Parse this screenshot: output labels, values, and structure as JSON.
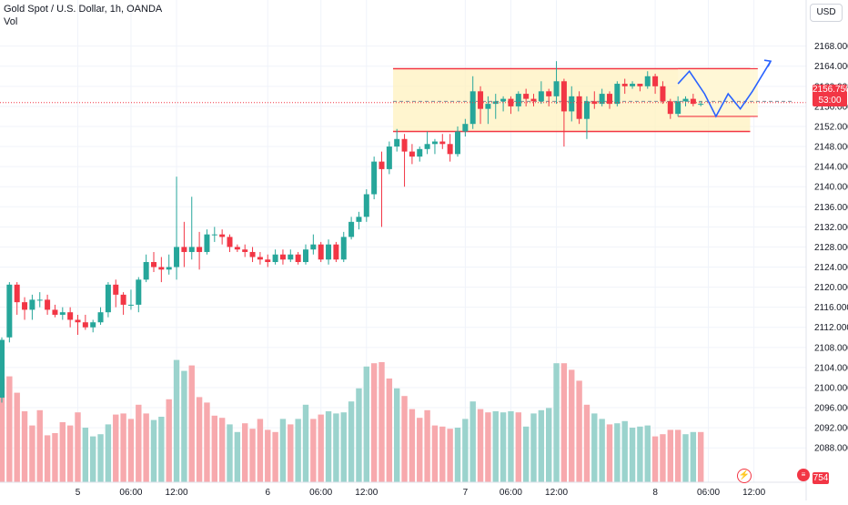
{
  "header": {
    "title": "Gold Spot / U.S. Dollar, 1h, OANDA",
    "volume_label": "Vol"
  },
  "currency_button": "USD",
  "last_price": {
    "value": "2156.750",
    "countdown": "53:00"
  },
  "volume_last": "754",
  "icons": {
    "flash": "lightning-icon",
    "flag": "us-flag-icon"
  },
  "colors": {
    "up": "#26a69a",
    "down": "#f23645",
    "vol_up": "#9bd3cd",
    "vol_down": "#f7a9ad",
    "zone_fill": "#fff2bf",
    "channel_line": "#f23645",
    "projection": "#2962ff"
  },
  "chart_data": {
    "type": "candlestick",
    "symbol": "Gold Spot / U.S. Dollar",
    "timeframe": "1h",
    "source": "OANDA",
    "y_ticks": [
      "2168.000",
      "2164.000",
      "2160.000",
      "2156.000",
      "2152.000",
      "2148.000",
      "2144.000",
      "2140.000",
      "2136.000",
      "2132.000",
      "2128.000",
      "2124.000",
      "2120.000",
      "2116.000",
      "2112.000",
      "2108.000",
      "2104.000",
      "2100.000",
      "2096.000",
      "2092.000",
      "2088.000"
    ],
    "ylim": [
      2085.5,
      2171.2
    ],
    "x_ticks": [
      {
        "label": "5",
        "index": 10
      },
      {
        "label": "06:00",
        "index": 17
      },
      {
        "label": "12:00",
        "index": 23
      },
      {
        "label": "6",
        "index": 35
      },
      {
        "label": "06:00",
        "index": 42
      },
      {
        "label": "12:00",
        "index": 48
      },
      {
        "label": "7",
        "index": 61
      },
      {
        "label": "06:00",
        "index": 67
      },
      {
        "label": "12:00",
        "index": 73
      },
      {
        "label": "8",
        "index": 86
      },
      {
        "label": "06:00",
        "index": 93
      },
      {
        "label": "12:00",
        "index": 99
      }
    ],
    "candles": [
      [
        2098.0,
        2109.5,
        2097.0,
        2110.0
      ],
      [
        2110.0,
        2120.5,
        2109.0,
        2121.0
      ],
      [
        2120.5,
        2117.0,
        2114.5,
        2121.0
      ],
      [
        2117.0,
        2115.5,
        2113.5,
        2118.0
      ],
      [
        2115.5,
        2117.5,
        2113.5,
        2118.5
      ],
      [
        2117.5,
        2117.5,
        2116.0,
        2119.0
      ],
      [
        2117.5,
        2115.5,
        2114.5,
        2118.5
      ],
      [
        2115.5,
        2114.5,
        2114.0,
        2116.5
      ],
      [
        2114.5,
        2115.0,
        2113.5,
        2116.0
      ],
      [
        2115.0,
        2113.5,
        2112.0,
        2116.0
      ],
      [
        2113.5,
        2113.0,
        2110.5,
        2114.5
      ],
      [
        2113.0,
        2112.0,
        2111.5,
        2114.5
      ],
      [
        2112.0,
        2113.0,
        2111.0,
        2113.5
      ],
      [
        2113.0,
        2115.0,
        2112.5,
        2116.0
      ],
      [
        2115.0,
        2120.5,
        2114.0,
        2121.0
      ],
      [
        2120.5,
        2118.5,
        2116.0,
        2121.5
      ],
      [
        2118.5,
        2116.5,
        2114.5,
        2119.0
      ],
      [
        2116.5,
        2116.5,
        2115.5,
        2119.5
      ],
      [
        2116.5,
        2121.5,
        2115.0,
        2122.0
      ],
      [
        2121.5,
        2125.0,
        2121.0,
        2126.5
      ],
      [
        2125.0,
        2124.0,
        2123.0,
        2127.0
      ],
      [
        2124.0,
        2123.5,
        2121.0,
        2126.0
      ],
      [
        2123.5,
        2124.0,
        2122.5,
        2126.5
      ],
      [
        2124.0,
        2128.0,
        2121.5,
        2142.0
      ],
      [
        2128.0,
        2127.0,
        2124.0,
        2133.0
      ],
      [
        2127.0,
        2128.0,
        2125.5,
        2138.0
      ],
      [
        2128.0,
        2127.0,
        2123.5,
        2131.0
      ],
      [
        2127.0,
        2130.5,
        2126.5,
        2131.5
      ],
      [
        2130.5,
        2130.5,
        2129.0,
        2132.0
      ],
      [
        2130.5,
        2130.0,
        2128.5,
        2131.5
      ],
      [
        2130.0,
        2128.0,
        2127.0,
        2130.5
      ],
      [
        2128.0,
        2127.5,
        2127.0,
        2128.5
      ],
      [
        2127.5,
        2127.0,
        2126.0,
        2128.5
      ],
      [
        2127.0,
        2126.0,
        2125.0,
        2128.0
      ],
      [
        2126.0,
        2125.5,
        2124.5,
        2127.0
      ],
      [
        2125.5,
        2125.0,
        2124.0,
        2126.5
      ],
      [
        2125.0,
        2126.5,
        2124.5,
        2127.5
      ],
      [
        2126.5,
        2125.5,
        2124.5,
        2127.5
      ],
      [
        2125.5,
        2126.5,
        2125.0,
        2127.5
      ],
      [
        2126.5,
        2125.0,
        2124.5,
        2127.0
      ],
      [
        2125.0,
        2127.5,
        2124.5,
        2128.5
      ],
      [
        2127.5,
        2128.5,
        2126.5,
        2130.5
      ],
      [
        2128.5,
        2125.5,
        2125.0,
        2129.0
      ],
      [
        2125.5,
        2128.5,
        2124.5,
        2129.5
      ],
      [
        2128.5,
        2125.5,
        2125.0,
        2129.0
      ],
      [
        2125.5,
        2130.0,
        2125.0,
        2131.0
      ],
      [
        2130.0,
        2133.0,
        2129.5,
        2134.0
      ],
      [
        2133.0,
        2134.0,
        2131.5,
        2135.0
      ],
      [
        2134.0,
        2138.5,
        2133.0,
        2139.5
      ],
      [
        2138.5,
        2145.0,
        2137.5,
        2146.0
      ],
      [
        2145.0,
        2143.5,
        2132.0,
        2147.0
      ],
      [
        2143.5,
        2148.0,
        2142.5,
        2149.0
      ],
      [
        2148.0,
        2149.5,
        2147.0,
        2151.5
      ],
      [
        2149.5,
        2147.0,
        2140.0,
        2150.5
      ],
      [
        2147.0,
        2146.0,
        2144.5,
        2148.5
      ],
      [
        2146.0,
        2147.5,
        2145.0,
        2148.0
      ],
      [
        2147.5,
        2148.5,
        2146.5,
        2151.0
      ],
      [
        2148.5,
        2149.0,
        2146.5,
        2149.5
      ],
      [
        2149.0,
        2148.5,
        2147.5,
        2150.5
      ],
      [
        2148.5,
        2146.5,
        2145.0,
        2150.5
      ],
      [
        2146.5,
        2151.0,
        2146.0,
        2152.0
      ],
      [
        2151.0,
        2152.5,
        2150.0,
        2153.5
      ],
      [
        2152.5,
        2159.0,
        2151.5,
        2162.0
      ],
      [
        2159.0,
        2155.5,
        2152.5,
        2160.0
      ],
      [
        2155.5,
        2156.5,
        2152.5,
        2158.0
      ],
      [
        2156.5,
        2157.0,
        2153.5,
        2158.5
      ],
      [
        2157.0,
        2157.5,
        2155.0,
        2158.0
      ],
      [
        2157.5,
        2156.0,
        2154.5,
        2158.0
      ],
      [
        2156.0,
        2158.5,
        2155.0,
        2159.0
      ],
      [
        2158.5,
        2157.5,
        2156.0,
        2159.5
      ],
      [
        2157.5,
        2157.0,
        2156.0,
        2158.5
      ],
      [
        2157.0,
        2159.0,
        2156.5,
        2161.0
      ],
      [
        2159.0,
        2158.0,
        2156.0,
        2159.5
      ],
      [
        2158.0,
        2161.0,
        2156.5,
        2165.0
      ],
      [
        2161.0,
        2155.0,
        2148.0,
        2161.5
      ],
      [
        2155.0,
        2158.0,
        2153.0,
        2160.0
      ],
      [
        2158.0,
        2153.5,
        2152.5,
        2159.0
      ],
      [
        2153.5,
        2157.0,
        2149.5,
        2158.0
      ],
      [
        2157.0,
        2156.5,
        2155.5,
        2159.0
      ],
      [
        2156.5,
        2158.5,
        2156.0,
        2159.5
      ],
      [
        2158.5,
        2156.5,
        2155.5,
        2159.0
      ],
      [
        2156.5,
        2160.5,
        2156.0,
        2161.0
      ],
      [
        2160.5,
        2160.0,
        2158.5,
        2161.5
      ],
      [
        2160.0,
        2160.5,
        2159.5,
        2161.0
      ],
      [
        2160.5,
        2160.0,
        2159.0,
        2160.5
      ],
      [
        2160.0,
        2162.0,
        2159.5,
        2163.0
      ],
      [
        2162.0,
        2160.0,
        2158.5,
        2162.5
      ],
      [
        2160.0,
        2157.0,
        2156.5,
        2161.0
      ],
      [
        2157.0,
        2154.5,
        2153.5,
        2157.5
      ],
      [
        2154.5,
        2157.0,
        2154.0,
        2158.0
      ],
      [
        2157.0,
        2157.5,
        2156.0,
        2158.0
      ],
      [
        2157.5,
        2156.5,
        2156.0,
        2158.5
      ],
      [
        2156.5,
        2156.5,
        2156.0,
        2157.0
      ]
    ],
    "volume": [
      [
        95,
        0
      ],
      [
        97,
        0
      ],
      [
        82,
        0
      ],
      [
        65,
        0
      ],
      [
        52,
        0
      ],
      [
        66,
        0
      ],
      [
        43,
        0
      ],
      [
        45,
        0
      ],
      [
        55,
        0
      ],
      [
        52,
        0
      ],
      [
        64,
        0
      ],
      [
        50,
        1
      ],
      [
        42,
        1
      ],
      [
        44,
        1
      ],
      [
        53,
        1
      ],
      [
        62,
        0
      ],
      [
        63,
        0
      ],
      [
        58,
        0
      ],
      [
        71,
        0
      ],
      [
        63,
        0
      ],
      [
        57,
        1
      ],
      [
        60,
        1
      ],
      [
        76,
        0
      ],
      [
        112,
        1
      ],
      [
        102,
        1
      ],
      [
        107,
        0
      ],
      [
        78,
        0
      ],
      [
        73,
        0
      ],
      [
        61,
        0
      ],
      [
        59,
        0
      ],
      [
        53,
        1
      ],
      [
        46,
        1
      ],
      [
        54,
        0
      ],
      [
        49,
        0
      ],
      [
        58,
        0
      ],
      [
        48,
        0
      ],
      [
        46,
        0
      ],
      [
        58,
        1
      ],
      [
        53,
        0
      ],
      [
        58,
        1
      ],
      [
        71,
        1
      ],
      [
        58,
        0
      ],
      [
        62,
        0
      ],
      [
        65,
        1
      ],
      [
        63,
        1
      ],
      [
        64,
        1
      ],
      [
        74,
        1
      ],
      [
        86,
        1
      ],
      [
        106,
        1
      ],
      [
        109,
        0
      ],
      [
        110,
        0
      ],
      [
        95,
        0
      ],
      [
        86,
        1
      ],
      [
        79,
        0
      ],
      [
        67,
        0
      ],
      [
        59,
        0
      ],
      [
        66,
        0
      ],
      [
        52,
        0
      ],
      [
        51,
        0
      ],
      [
        49,
        0
      ],
      [
        50,
        1
      ],
      [
        58,
        1
      ],
      [
        74,
        1
      ],
      [
        67,
        0
      ],
      [
        64,
        0
      ],
      [
        65,
        1
      ],
      [
        64,
        1
      ],
      [
        65,
        1
      ],
      [
        64,
        0
      ],
      [
        51,
        1
      ],
      [
        63,
        1
      ],
      [
        66,
        1
      ],
      [
        68,
        1
      ],
      [
        109,
        1
      ],
      [
        109,
        0
      ],
      [
        103,
        0
      ],
      [
        93,
        0
      ],
      [
        71,
        0
      ],
      [
        63,
        1
      ],
      [
        58,
        1
      ],
      [
        53,
        0
      ],
      [
        54,
        1
      ],
      [
        56,
        1
      ],
      [
        50,
        1
      ],
      [
        51,
        1
      ],
      [
        52,
        1
      ],
      [
        42,
        0
      ],
      [
        44,
        0
      ],
      [
        48,
        0
      ],
      [
        48,
        0
      ],
      [
        44,
        1
      ],
      [
        46,
        1
      ],
      [
        46,
        0
      ]
    ],
    "annotations": {
      "channel_top": [
        [
          2163.5,
          2163.5
        ]
      ],
      "channel_bottom": [
        [
          2151.0,
          2151.0
        ]
      ],
      "last_price_line": 2156.75,
      "inner_zone": [
        2163.5,
        2154.0
      ],
      "projection_path_prices": [
        2160.5,
        2163.0,
        2158.5,
        2154.0,
        2158.5,
        2155.5,
        2159.0,
        2165.0
      ]
    }
  }
}
